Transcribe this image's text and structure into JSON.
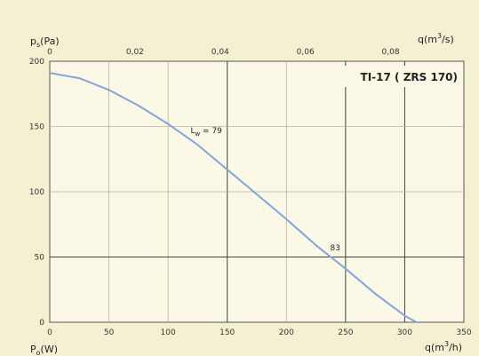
{
  "chart_data": {
    "type": "line",
    "title": "TI-17 ( ZRS 170)",
    "x": {
      "label_main": "q(m",
      "label_sup": "3",
      "label_tail": "/h)",
      "range": [
        0,
        350
      ],
      "ticks": [
        "0",
        "50",
        "100",
        "150",
        "200",
        "250",
        "300",
        "350"
      ]
    },
    "x2": {
      "label_main": "q(m",
      "label_sup": "3",
      "label_tail": "/s)",
      "range": [
        0,
        0.0972
      ],
      "ticks": [
        "0",
        "0,02",
        "0,04",
        "0,06",
        "0,08"
      ],
      "tick_values": [
        0,
        0.02,
        0.04,
        0.06,
        0.08
      ]
    },
    "y": {
      "label_main": "p",
      "label_sub": "s",
      "label_tail": "(Pa)",
      "range": [
        0,
        200
      ],
      "ticks": [
        "0",
        "50",
        "100",
        "150",
        "200"
      ]
    },
    "y_bottom_label": {
      "main": "P",
      "sub": "o",
      "tail": "(W)"
    },
    "grid": true,
    "major_vlines": [
      150,
      250,
      300
    ],
    "series": [
      {
        "color": "#7fa6de",
        "x": [
          0,
          25,
          50,
          75,
          100,
          125,
          150,
          175,
          200,
          225,
          250,
          275,
          300,
          310
        ],
        "y": [
          191,
          187,
          178,
          166,
          152,
          136,
          117,
          98,
          79,
          59,
          41,
          22,
          5,
          0
        ]
      }
    ],
    "annotations": [
      {
        "main": "L",
        "sub": "w",
        "tail": " = 79",
        "x": 119,
        "y": 145
      },
      {
        "main": "83",
        "sub": "",
        "tail": "",
        "x": 237,
        "y": 55
      }
    ]
  }
}
